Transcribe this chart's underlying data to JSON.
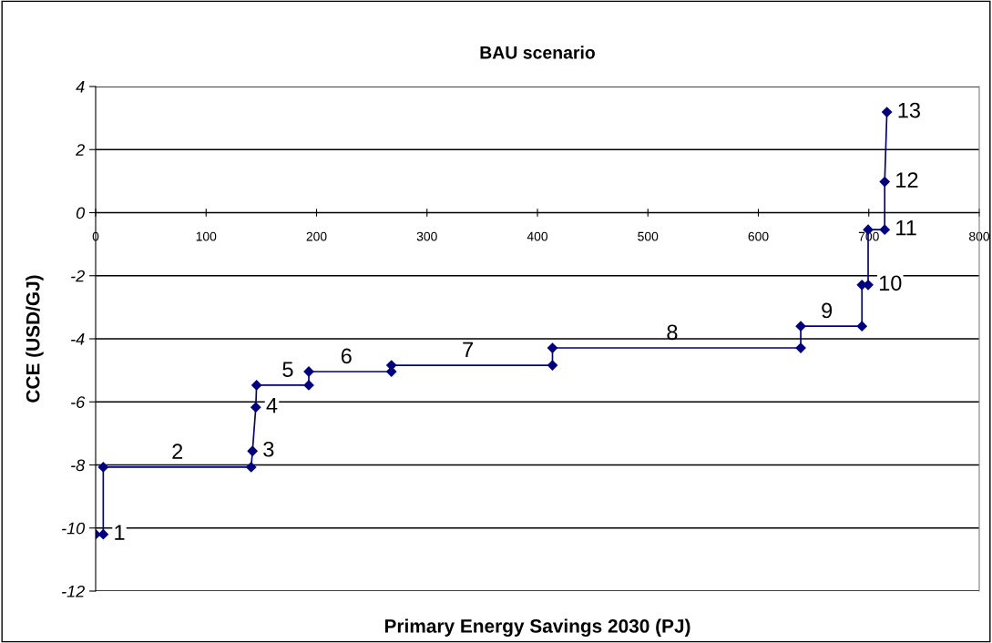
{
  "chart_data": {
    "type": "line",
    "title": "BAU scenario",
    "xlabel": "Primary Energy Savings 2030 (PJ)",
    "ylabel": "CCE (USD/GJ)",
    "series": [
      {
        "color": "#000080",
        "x": [
          0,
          6.9,
          6.9,
          140.8,
          142,
          145,
          145.7,
          193,
          193,
          267.8,
          267.8,
          413.6,
          413.6,
          638.4,
          638.4,
          693.8,
          693.8,
          699.4,
          699.4,
          714.4,
          714.4,
          716.4
        ],
        "values": [
          -10.2,
          -10.2,
          -8.07,
          -8.07,
          -7.56,
          -6.17,
          -5.47,
          -5.47,
          -5.04,
          -5.04,
          -4.84,
          -4.84,
          -4.29,
          -4.29,
          -3.6,
          -3.6,
          -2.29,
          -2.29,
          -0.54,
          -0.54,
          0.98,
          3.19
        ]
      }
    ],
    "marker": "diamond",
    "line_style": "solid",
    "grid": "y",
    "legend": false,
    "xlim": [
      0,
      800
    ],
    "xticks": [
      0,
      100,
      200,
      300,
      400,
      500,
      600,
      700,
      800
    ],
    "ylim": [
      -12,
      4
    ],
    "yticks": [
      -12,
      -10,
      -8,
      -6,
      -4,
      -2,
      0,
      2,
      4
    ],
    "annotations": [
      {
        "text": "1",
        "x": 6.9,
        "y": -10.2
      },
      {
        "text": "2",
        "x": 74,
        "y": -8.07
      },
      {
        "text": "3",
        "x": 142,
        "y": -7.56
      },
      {
        "text": "4",
        "x": 145,
        "y": -6.17
      },
      {
        "text": "5",
        "x": 174,
        "y": -5.47
      },
      {
        "text": "6",
        "x": 227,
        "y": -5.04
      },
      {
        "text": "7",
        "x": 337,
        "y": -4.84
      },
      {
        "text": "8",
        "x": 522,
        "y": -4.29
      },
      {
        "text": "9",
        "x": 662,
        "y": -3.6
      },
      {
        "text": "10",
        "x": 699.4,
        "y": -2.29
      },
      {
        "text": "11",
        "x": 714.4,
        "y": -0.54
      },
      {
        "text": "12",
        "x": 714.4,
        "y": 0.98
      },
      {
        "text": "13",
        "x": 716.4,
        "y": 3.19
      }
    ]
  }
}
